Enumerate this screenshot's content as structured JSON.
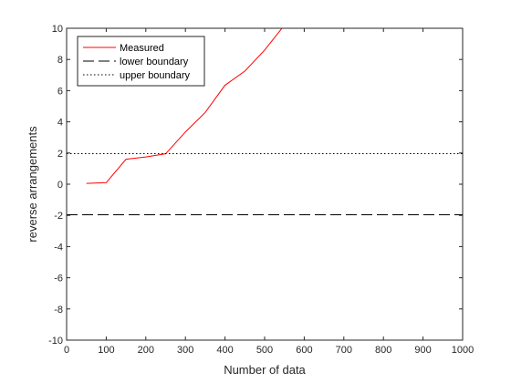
{
  "chart_data": {
    "type": "line",
    "xlabel": "Number of data",
    "ylabel": "reverse arrangements",
    "xlim": [
      0,
      1000
    ],
    "ylim": [
      -10,
      10
    ],
    "xticks": [
      0,
      100,
      200,
      300,
      400,
      500,
      600,
      700,
      800,
      900,
      1000
    ],
    "yticks": [
      -10,
      -8,
      -6,
      -4,
      -2,
      0,
      2,
      4,
      6,
      8,
      10
    ],
    "grid": false,
    "legend_position": "top-left",
    "series": [
      {
        "name": "Measured",
        "color": "#ff0000",
        "style": "solid",
        "x": [
          50,
          100,
          150,
          200,
          250,
          300,
          350,
          400,
          450,
          500,
          550
        ],
        "y": [
          0.05,
          0.1,
          1.6,
          1.75,
          1.95,
          3.35,
          4.6,
          6.35,
          7.25,
          8.6,
          10.2
        ]
      },
      {
        "name": "lower boundary",
        "color": "#000000",
        "style": "dashed",
        "x": [
          0,
          1000
        ],
        "y": [
          -1.96,
          -1.96
        ]
      },
      {
        "name": "upper boundary",
        "color": "#000000",
        "style": "dotted",
        "x": [
          0,
          1000
        ],
        "y": [
          1.96,
          1.96
        ]
      }
    ]
  }
}
